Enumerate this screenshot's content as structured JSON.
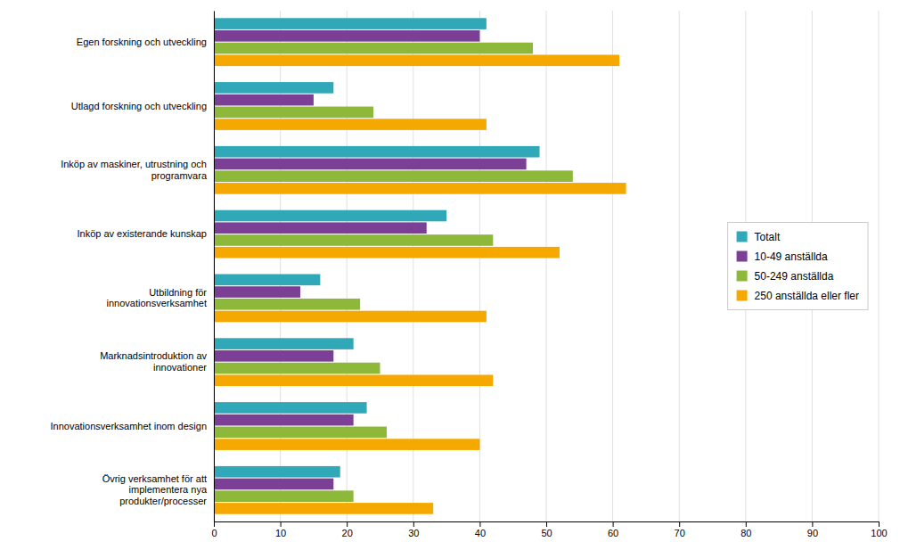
{
  "chart_data": {
    "type": "bar",
    "orientation": "horizontal",
    "categories": [
      "Egen forskning och utveckling",
      "Utlagd forskning och utveckling",
      "Inköp av maskiner, utrustning och\nprogramvara",
      "Inköp av existerande kunskap",
      "Utbildning för\ninnovationsverksamhet",
      "Marknadsintroduktion av\ninnovationer",
      "Innovationsverksamhet inom design",
      "Övrig verksamhet för att\nimplementera nya\nprodukter/processer"
    ],
    "series": [
      {
        "name": "Totalt",
        "color": "#31A8B8",
        "values": [
          41,
          18,
          49,
          35,
          16,
          21,
          23,
          19
        ]
      },
      {
        "name": "10-49 anställda",
        "color": "#7B3F96",
        "values": [
          40,
          15,
          47,
          32,
          13,
          18,
          21,
          18
        ]
      },
      {
        "name": "50-249 anställda",
        "color": "#8DB83A",
        "values": [
          48,
          24,
          54,
          42,
          22,
          25,
          26,
          21
        ]
      },
      {
        "name": "250 anställda eller fler",
        "color": "#F5A800",
        "values": [
          61,
          41,
          62,
          52,
          41,
          42,
          40,
          33
        ]
      }
    ],
    "xlim": [
      0,
      100
    ],
    "xticks": [
      0,
      10,
      20,
      30,
      40,
      50,
      60,
      70,
      80,
      90,
      100
    ],
    "grid": true,
    "legend": "right"
  }
}
